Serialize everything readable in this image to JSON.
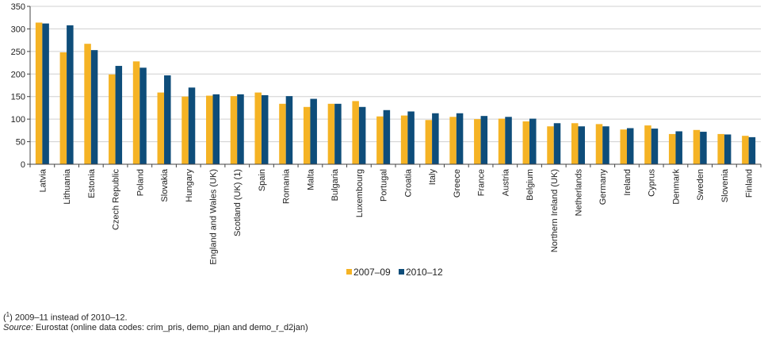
{
  "chart_data": {
    "type": "bar",
    "title": "",
    "xlabel": "",
    "ylabel": "",
    "ylim": [
      0,
      350
    ],
    "yticks": [
      0,
      50,
      100,
      150,
      200,
      250,
      300,
      350
    ],
    "grid": true,
    "legend_position": "bottom-center",
    "categories": [
      "Latvia",
      "Lithuania",
      "Estonia",
      "Czech Republic",
      "Poland",
      "Slovakia",
      "Hungary",
      "England and Wales (UK)",
      "Scotland (UK) (1)",
      "Spain",
      "Romania",
      "Malta",
      "Bulgaria",
      "Luxembourg",
      "Portugal",
      "Croatia",
      "Italy",
      "Greece",
      "France",
      "Austria",
      "Belgium",
      "Northern Ireland (UK)",
      "Netherlands",
      "Germany",
      "Ireland",
      "Cyprus",
      "Denmark",
      "Sweden",
      "Slovenia",
      "Finland"
    ],
    "series": [
      {
        "name": "2007–09",
        "color": "#F5B324",
        "values": [
          314,
          248,
          267,
          199,
          228,
          159,
          150,
          152,
          151,
          159,
          134,
          127,
          134,
          140,
          106,
          108,
          98,
          105,
          100,
          101,
          95,
          84,
          91,
          89,
          77,
          86,
          67,
          76,
          67,
          63
        ]
      },
      {
        "name": "2010–12",
        "color": "#0E4D7A",
        "values": [
          312,
          308,
          253,
          218,
          214,
          197,
          170,
          155,
          155,
          153,
          151,
          145,
          134,
          127,
          120,
          117,
          113,
          113,
          107,
          105,
          101,
          91,
          84,
          84,
          80,
          79,
          73,
          72,
          66,
          60
        ]
      }
    ]
  },
  "footnotes": {
    "note_marker": "1",
    "note_text": "2009–11 instead of 2010–12.",
    "source_label": "Source:",
    "source_text": "Eurostat (online data codes: crim_pris, demo_pjan and demo_r_d2jan)"
  }
}
